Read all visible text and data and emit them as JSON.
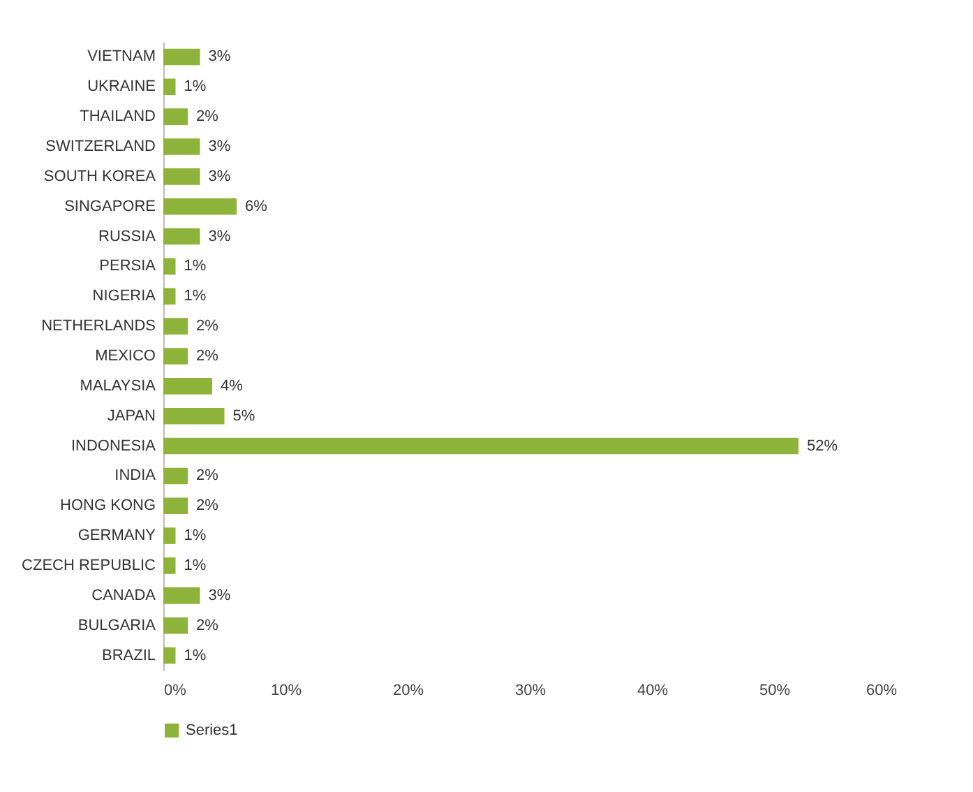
{
  "chart_data": {
    "type": "bar",
    "orientation": "horizontal",
    "categories": [
      "VIETNAM",
      "UKRAINE",
      "THAILAND",
      "SWITZERLAND",
      "SOUTH KOREA",
      "SINGAPORE",
      "RUSSIA",
      "PERSIA",
      "NIGERIA",
      "NETHERLANDS",
      "MEXICO",
      "MALAYSIA",
      "JAPAN",
      "INDONESIA",
      "INDIA",
      "HONG KONG",
      "GERMANY",
      "CZECH REPUBLIC",
      "CANADA",
      "BULGARIA",
      "BRAZIL"
    ],
    "series": [
      {
        "name": "Series1",
        "color": "#8db33a",
        "values": [
          3,
          1,
          2,
          3,
          3,
          6,
          3,
          1,
          1,
          2,
          2,
          4,
          5,
          52,
          2,
          2,
          1,
          1,
          3,
          2,
          1
        ],
        "value_labels": [
          "3%",
          "1%",
          "2%",
          "3%",
          "3%",
          "6%",
          "3%",
          "1%",
          "1%",
          "2%",
          "2%",
          "4%",
          "5%",
          "52%",
          "2%",
          "2%",
          "1%",
          "1%",
          "3%",
          "2%",
          "1%"
        ]
      }
    ],
    "xlim": [
      0,
      60
    ],
    "xticks": [
      {
        "value": 0,
        "label": "0%"
      },
      {
        "value": 10,
        "label": "10%"
      },
      {
        "value": 20,
        "label": "20%"
      },
      {
        "value": 30,
        "label": "30%"
      },
      {
        "value": 40,
        "label": "40%"
      },
      {
        "value": 50,
        "label": "50%"
      },
      {
        "value": 60,
        "label": "60%"
      }
    ],
    "grid": false,
    "legend": "bottom"
  }
}
